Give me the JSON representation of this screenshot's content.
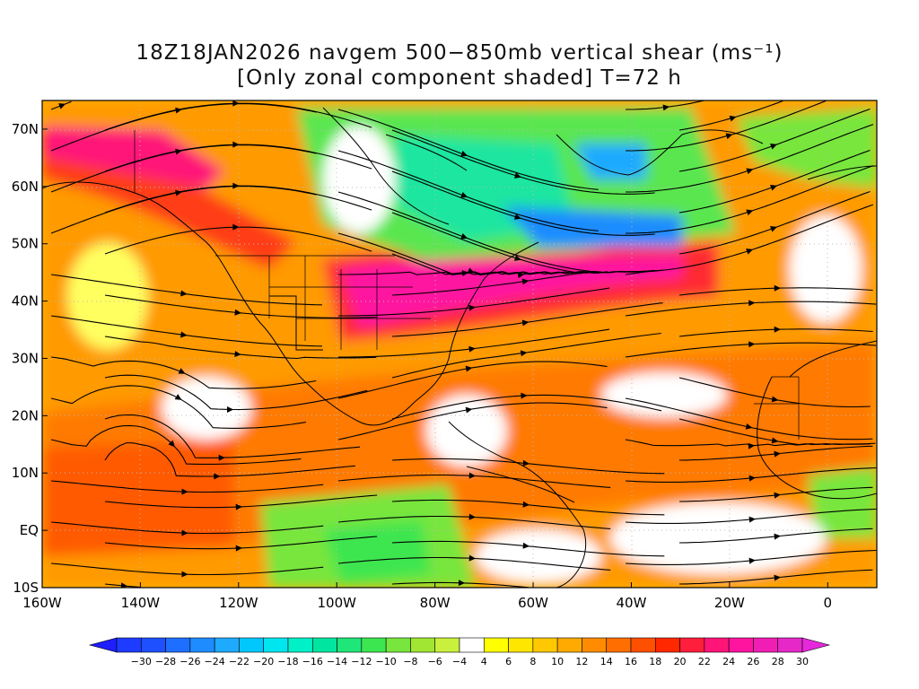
{
  "title": {
    "line1": "18Z18JAN2026 navgem 500−850mb vertical shear (ms⁻¹)",
    "line2": "[Only zonal component shaded] T=72 h"
  },
  "map": {
    "lat_range": [
      -10,
      75
    ],
    "lon_range": [
      -160,
      10
    ],
    "lat_ticks": [
      {
        "value": 70,
        "label": "70N"
      },
      {
        "value": 60,
        "label": "60N"
      },
      {
        "value": 50,
        "label": "50N"
      },
      {
        "value": 40,
        "label": "40N"
      },
      {
        "value": 30,
        "label": "30N"
      },
      {
        "value": 20,
        "label": "20N"
      },
      {
        "value": 10,
        "label": "10N"
      },
      {
        "value": 0,
        "label": "EQ"
      },
      {
        "value": -10,
        "label": "10S"
      }
    ],
    "lon_ticks": [
      {
        "value": -160,
        "label": "160W"
      },
      {
        "value": -140,
        "label": "140W"
      },
      {
        "value": -120,
        "label": "120W"
      },
      {
        "value": -100,
        "label": "100W"
      },
      {
        "value": -80,
        "label": "80W"
      },
      {
        "value": -60,
        "label": "60W"
      },
      {
        "value": -40,
        "label": "40W"
      },
      {
        "value": -20,
        "label": "20W"
      },
      {
        "value": 0,
        "label": "0"
      }
    ]
  },
  "colorbar": {
    "levels": [
      {
        "label": "−30",
        "color": "#1e3cff"
      },
      {
        "label": "−28",
        "color": "#1e50ff"
      },
      {
        "label": "−26",
        "color": "#1e6eff"
      },
      {
        "label": "−24",
        "color": "#1e8cff"
      },
      {
        "label": "−22",
        "color": "#1eaaff"
      },
      {
        "label": "−20",
        "color": "#00c8ff"
      },
      {
        "label": "−18",
        "color": "#00e6f0"
      },
      {
        "label": "−16",
        "color": "#00f0c8"
      },
      {
        "label": "−14",
        "color": "#00e6a0"
      },
      {
        "label": "−12",
        "color": "#1ee678"
      },
      {
        "label": "−10",
        "color": "#3ce650"
      },
      {
        "label": "−8",
        "color": "#78e63c"
      },
      {
        "label": "−6",
        "color": "#a0e632"
      },
      {
        "label": "−4",
        "color": "#c8f03c"
      },
      {
        "label": "4",
        "color": "#ffffff"
      },
      {
        "label": "6",
        "color": "#ffff00"
      },
      {
        "label": "8",
        "color": "#ffe600"
      },
      {
        "label": "10",
        "color": "#ffc800"
      },
      {
        "label": "12",
        "color": "#ffaa00"
      },
      {
        "label": "14",
        "color": "#ff8c00"
      },
      {
        "label": "16",
        "color": "#ff6e00"
      },
      {
        "label": "18",
        "color": "#ff5000"
      },
      {
        "label": "20",
        "color": "#ff2800"
      },
      {
        "label": "22",
        "color": "#ff1e3c"
      },
      {
        "label": "24",
        "color": "#ff1478"
      },
      {
        "label": "26",
        "color": "#ff14a0"
      },
      {
        "label": "28",
        "color": "#f01eb4"
      },
      {
        "label": "30",
        "color": "#e628c8"
      }
    ],
    "low_end_color": "#1e1eff",
    "high_end_color": "#e628dc"
  }
}
